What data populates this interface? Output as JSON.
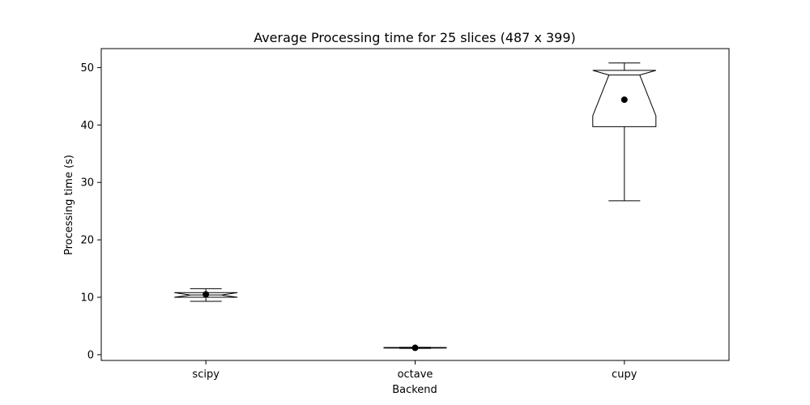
{
  "chart_data": {
    "type": "boxplot",
    "title": "Average Processing time for 25 slices (487 x 399)",
    "xlabel": "Backend",
    "ylabel": "Processing time (s)",
    "categories": [
      "scipy",
      "octave",
      "cupy"
    ],
    "ylim": [
      -1,
      53.3
    ],
    "yticks": [
      0,
      10,
      20,
      30,
      40,
      50
    ],
    "notched": true,
    "boxes": [
      {
        "name": "scipy",
        "whisker_low": 9.3,
        "q1": 10.0,
        "median": 10.4,
        "q3": 10.8,
        "whisker_high": 11.5,
        "mean": 10.5,
        "notch_low": 10.0,
        "notch_high": 10.8
      },
      {
        "name": "octave",
        "whisker_low": 1.1,
        "q1": 1.15,
        "median": 1.2,
        "q3": 1.25,
        "whisker_high": 1.3,
        "mean": 1.2,
        "notch_low": 1.15,
        "notch_high": 1.25
      },
      {
        "name": "cupy",
        "whisker_low": 26.8,
        "q1": 39.7,
        "median": 48.7,
        "q3": 49.5,
        "whisker_high": 50.8,
        "mean": 44.4,
        "notch_low": 41.6,
        "notch_high": 49.5
      }
    ],
    "grid": false,
    "colors": {
      "box": "#000000",
      "mean_marker": "#000000",
      "median": "#000000"
    }
  }
}
